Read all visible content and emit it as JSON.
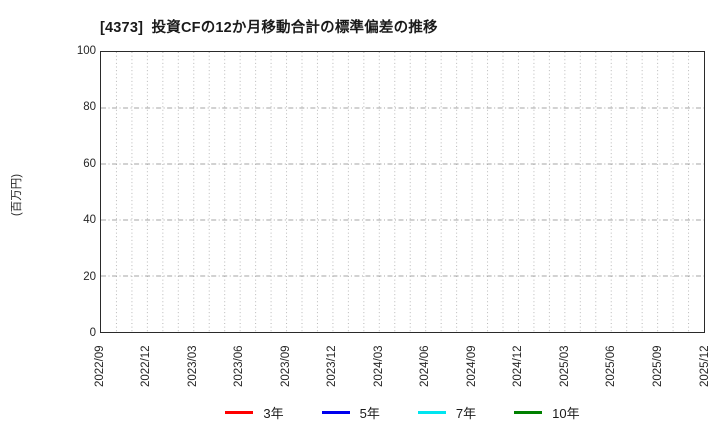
{
  "chart_data": {
    "type": "line",
    "title": "[4373]  投資CFの12か月移動合計の標準偏差の推移",
    "xlabel": "",
    "ylabel": "(百万円)",
    "ylim": [
      0,
      100
    ],
    "yticks": [
      0,
      20,
      40,
      60,
      80,
      100
    ],
    "x_tick_labels": [
      "2022/09",
      "2022/12",
      "2023/03",
      "2023/06",
      "2023/09",
      "2023/12",
      "2024/03",
      "2024/06",
      "2024/09",
      "2024/12",
      "2025/03",
      "2025/06",
      "2025/09",
      "2025/12"
    ],
    "x_total_months": 39,
    "x_months_per_tick": 3,
    "grid": {
      "vertical": "monthly, dotted",
      "horizontal": "at each y tick, dashed",
      "vertical_color": "#b9b9b9",
      "horizontal_color": "#a6a6a6"
    },
    "frame_color": "#2a2a2a",
    "legend_position": "bottom-center",
    "series": [
      {
        "name": "3年",
        "color": "#ff0000",
        "values": []
      },
      {
        "name": "5年",
        "color": "#0000ee",
        "values": []
      },
      {
        "name": "7年",
        "color": "#00e5f0",
        "values": []
      },
      {
        "name": "10年",
        "color": "#008000",
        "values": []
      }
    ],
    "plot_content": "empty - no data lines drawn"
  }
}
